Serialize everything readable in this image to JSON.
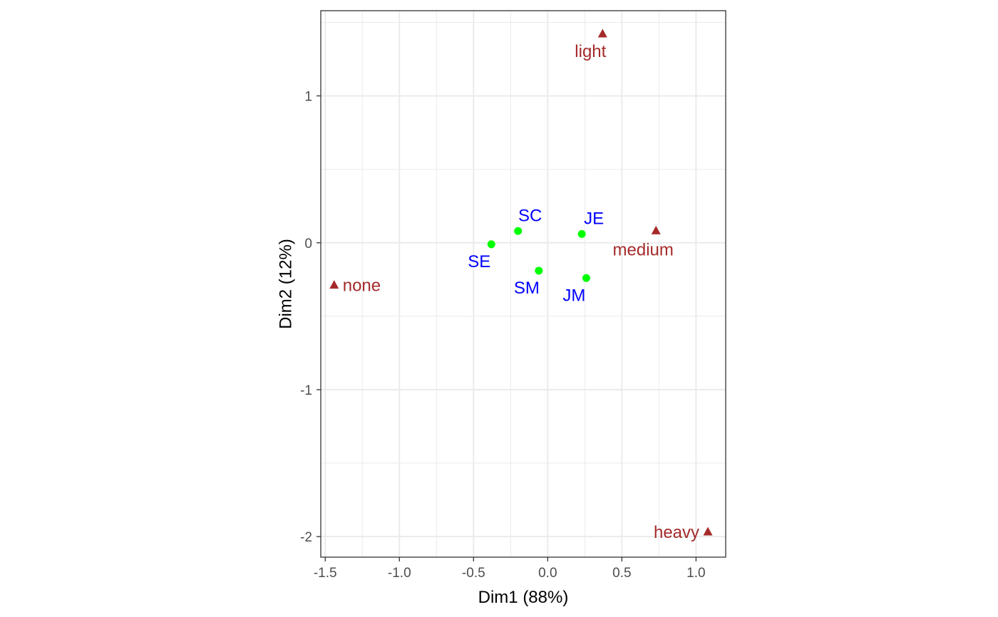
{
  "chart_data": {
    "type": "scatter",
    "title": "",
    "xlabel": "Dim1 (88%)",
    "ylabel": "Dim2 (12%)",
    "xlim": [
      -1.53,
      1.2
    ],
    "ylim": [
      -2.14,
      1.58
    ],
    "grid": true,
    "x_ticks": [
      -1.5,
      -1.0,
      -0.5,
      0.0,
      0.5,
      1.0
    ],
    "x_tick_labels": [
      "-1.5",
      "-1.0",
      "-0.5",
      "0.0",
      "0.5",
      "1.0"
    ],
    "y_ticks": [
      -2,
      -1,
      0,
      1
    ],
    "y_tick_labels": [
      "-2",
      "-1",
      "0",
      "1"
    ],
    "series": [
      {
        "marker": "circle",
        "point_color": "#00ff00",
        "label_color": "#0000ff",
        "points": [
          {
            "label": "SE",
            "x": -0.38,
            "y": -0.01,
            "label_anchor": "below-left"
          },
          {
            "label": "SC",
            "x": -0.2,
            "y": 0.08,
            "label_anchor": "above-right"
          },
          {
            "label": "SM",
            "x": -0.06,
            "y": -0.19,
            "label_anchor": "below-left"
          },
          {
            "label": "JE",
            "x": 0.23,
            "y": 0.06,
            "label_anchor": "above-right"
          },
          {
            "label": "JM",
            "x": 0.26,
            "y": -0.24,
            "label_anchor": "below-left"
          }
        ]
      },
      {
        "marker": "triangle",
        "point_color": "#a52a2a",
        "label_color": "#a52a2a",
        "points": [
          {
            "label": "none",
            "x": -1.44,
            "y": -0.29,
            "label_anchor": "right"
          },
          {
            "label": "light",
            "x": 0.37,
            "y": 1.42,
            "label_anchor": "below-left"
          },
          {
            "label": "medium",
            "x": 0.73,
            "y": 0.08,
            "label_anchor": "below"
          },
          {
            "label": "heavy",
            "x": 1.08,
            "y": -1.97,
            "label_anchor": "left"
          }
        ]
      }
    ]
  }
}
